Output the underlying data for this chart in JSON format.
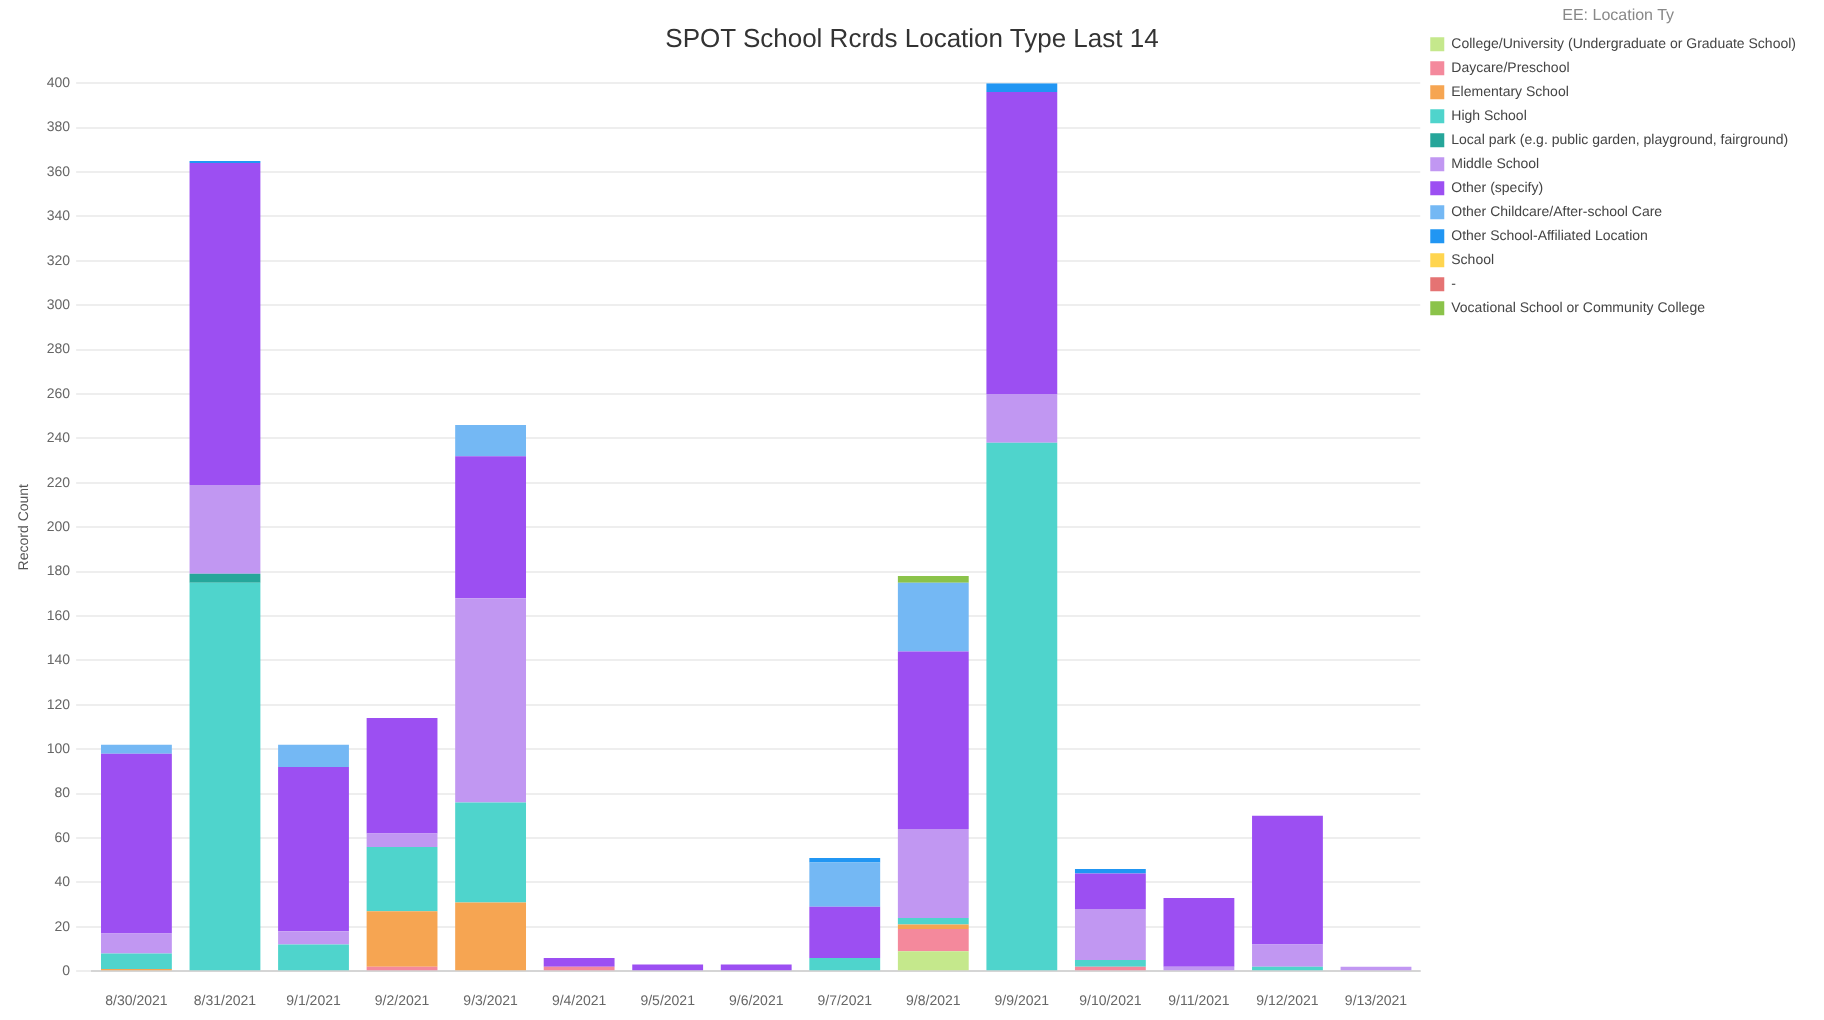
{
  "chart_data": {
    "type": "bar",
    "title": "SPOT School Rcrds Location Type Last 14",
    "ylabel": "Record Count",
    "legend_title": "EE: Location Ty",
    "stacked": true,
    "grid": "y",
    "legend": "right",
    "categories": [
      "8/30/2021",
      "8/31/2021",
      "9/1/2021",
      "9/2/2021",
      "9/3/2021",
      "9/4/2021",
      "9/5/2021",
      "9/6/2021",
      "9/7/2021",
      "9/8/2021",
      "9/9/2021",
      "9/10/2021",
      "9/11/2021",
      "9/12/2021",
      "9/13/2021"
    ],
    "ylim": [
      0,
      400
    ],
    "yticks": [
      0,
      20,
      40,
      60,
      80,
      100,
      120,
      140,
      160,
      180,
      200,
      220,
      240,
      260,
      280,
      300,
      320,
      340,
      360,
      380,
      400
    ],
    "series": [
      {
        "name": "College/University (Undergraduate or Graduate School)",
        "color": "#c5e88c",
        "values": [
          null,
          null,
          null,
          null,
          null,
          null,
          null,
          null,
          null,
          9,
          null,
          null,
          null,
          null,
          null
        ]
      },
      {
        "name": "Daycare/Preschool",
        "color": "#f4899c",
        "values": [
          null,
          null,
          null,
          2,
          null,
          2,
          null,
          null,
          null,
          10,
          null,
          2,
          null,
          null,
          null
        ]
      },
      {
        "name": "Elementary School",
        "color": "#f6a552",
        "values": [
          1,
          null,
          null,
          25,
          31,
          null,
          null,
          null,
          null,
          2,
          null,
          null,
          null,
          null,
          null
        ]
      },
      {
        "name": "High School",
        "color": "#4fd4cc",
        "values": [
          7,
          175,
          12,
          29,
          45,
          null,
          null,
          null,
          6,
          3,
          238,
          3,
          null,
          2,
          null
        ]
      },
      {
        "name": "Local park (e.g. public garden, playground, fairground)",
        "color": "#26a69a",
        "values": [
          null,
          4,
          null,
          null,
          null,
          null,
          null,
          null,
          null,
          null,
          null,
          null,
          null,
          null,
          null
        ]
      },
      {
        "name": "Middle School",
        "color": "#c197f2",
        "values": [
          9,
          40,
          6,
          6,
          92,
          null,
          null,
          null,
          null,
          40,
          22,
          23,
          2,
          10,
          2
        ]
      },
      {
        "name": "Other (specify)",
        "color": "#9c4ff2",
        "values": [
          81,
          145,
          74,
          52,
          64,
          4,
          3,
          3,
          23,
          80,
          136,
          16,
          31,
          58,
          null
        ]
      },
      {
        "name": "Other Childcare/After-school Care",
        "color": "#74b8f4",
        "values": [
          4,
          null,
          10,
          null,
          14,
          null,
          null,
          null,
          20,
          31,
          null,
          null,
          null,
          null,
          null
        ]
      },
      {
        "name": "Other School-Affiliated Location",
        "color": "#2196f3",
        "values": [
          null,
          1,
          null,
          null,
          null,
          null,
          null,
          null,
          2,
          null,
          4,
          2,
          null,
          null,
          null
        ]
      },
      {
        "name": "School",
        "color": "#ffd54f",
        "values": [
          null,
          null,
          null,
          null,
          null,
          null,
          null,
          null,
          null,
          null,
          null,
          null,
          null,
          null,
          null
        ]
      },
      {
        "name": "-",
        "color": "#e57373",
        "values": [
          null,
          null,
          null,
          null,
          null,
          null,
          null,
          null,
          null,
          null,
          null,
          null,
          null,
          null,
          null
        ]
      },
      {
        "name": "Vocational School or Community College",
        "color": "#8bc34a",
        "values": [
          null,
          null,
          null,
          null,
          null,
          null,
          null,
          null,
          null,
          3,
          null,
          null,
          null,
          null,
          null
        ]
      }
    ]
  }
}
